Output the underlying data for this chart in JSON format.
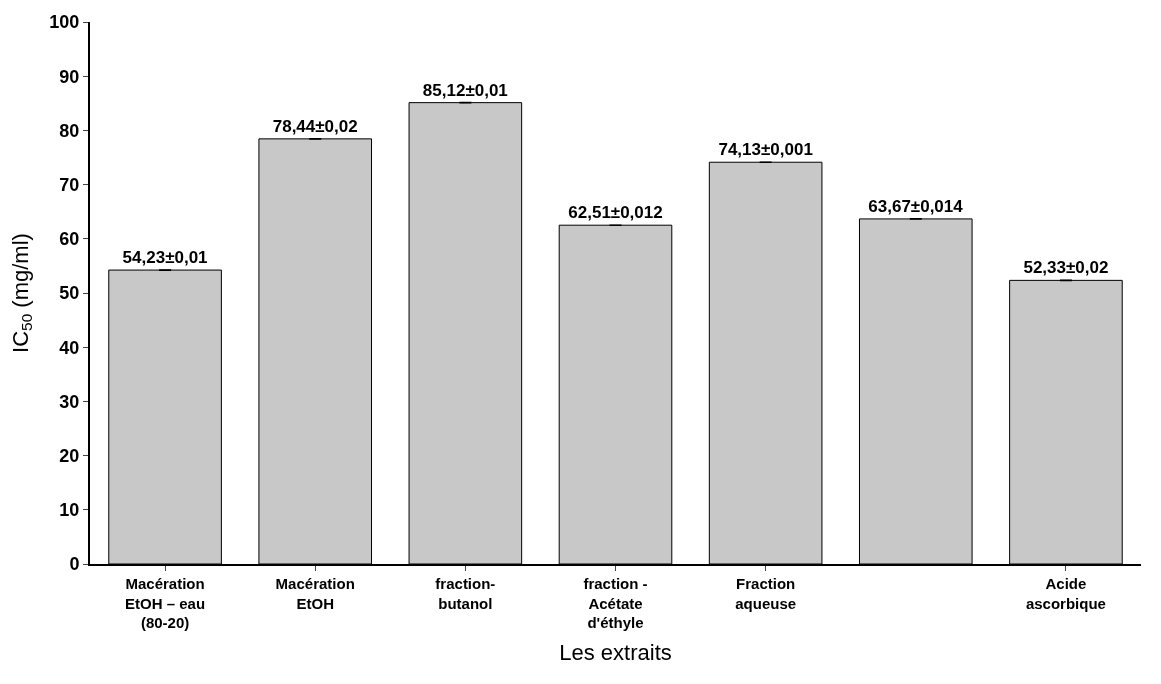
{
  "chart_data": {
    "type": "bar",
    "xlabel": "Les extraits",
    "ylabel": "IC$_{50}$ (mg/ml)",
    "categories": [
      "Macération\nEtOH – eau\n(80-20)",
      "Macération\nEtOH",
      "fraction-\nbutanol",
      "fraction -\nAcétate\nd'éthyle",
      "Fraction\naqueuse",
      null,
      "Acide\nascorbique"
    ],
    "values": [
      54.23,
      78.44,
      85.12,
      62.51,
      74.13,
      63.67,
      52.33
    ],
    "errors": [
      0.01,
      0.02,
      0.01,
      0.012,
      0.001,
      0.014,
      0.02
    ],
    "value_labels": [
      "54,23±0,01",
      "78,44±0,02",
      "85,12±0,01",
      "62,51±0,012",
      "74,13±0,001",
      "63,67±0,014",
      "52,33±0,02"
    ],
    "color": "#c8c8c8",
    "ylim": [
      0,
      100
    ],
    "yticks": [
      0,
      10,
      20,
      30,
      40,
      50,
      60,
      70,
      80,
      90,
      100
    ]
  }
}
